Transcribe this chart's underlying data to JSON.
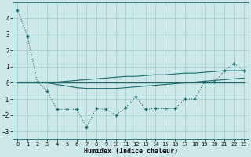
{
  "x": [
    0,
    1,
    2,
    3,
    4,
    5,
    6,
    7,
    8,
    9,
    10,
    11,
    12,
    13,
    14,
    15,
    16,
    17,
    18,
    19,
    20,
    21,
    22,
    23
  ],
  "line_main": [
    4.5,
    2.9,
    0.05,
    -0.5,
    -1.65,
    -1.65,
    -1.65,
    -2.75,
    -1.6,
    -1.65,
    -2.0,
    -1.55,
    -0.85,
    -1.65,
    -1.6,
    -1.6,
    -1.6,
    -1.0,
    -1.0,
    0.05,
    0.05,
    0.75,
    1.2,
    0.75
  ],
  "line_upper": [
    0.05,
    0.05,
    0.05,
    0.05,
    0.05,
    0.1,
    0.15,
    0.2,
    0.25,
    0.3,
    0.35,
    0.4,
    0.4,
    0.45,
    0.5,
    0.5,
    0.55,
    0.6,
    0.6,
    0.65,
    0.7,
    0.75,
    0.75,
    0.75
  ],
  "line_lower": [
    0.0,
    0.0,
    0.0,
    0.0,
    -0.1,
    -0.2,
    -0.3,
    -0.35,
    -0.35,
    -0.35,
    -0.35,
    -0.3,
    -0.25,
    -0.2,
    -0.15,
    -0.1,
    -0.05,
    0.0,
    0.05,
    0.1,
    0.15,
    0.2,
    0.25,
    0.3
  ],
  "line_flat": [
    0.0,
    0.0,
    0.0,
    0.0,
    0.0,
    0.0,
    0.0,
    0.0,
    0.0,
    0.0,
    0.0,
    0.0,
    0.0,
    0.0,
    0.0,
    0.0,
    0.0,
    0.0,
    0.0,
    0.0,
    0.0,
    0.0,
    0.0,
    0.0
  ],
  "color_main": "#1a6b6b",
  "color_band": "#1a6b6b",
  "color_flat": "#1a6b6b",
  "background_color": "#cce8e8",
  "grid_color": "#aad0d0",
  "xlabel": "Humidex (Indice chaleur)",
  "ylim": [
    -3.5,
    5.0
  ],
  "xlim": [
    -0.5,
    23.5
  ],
  "yticks": [
    -3,
    -2,
    -1,
    0,
    1,
    2,
    3,
    4
  ],
  "xticks": [
    0,
    1,
    2,
    3,
    4,
    5,
    6,
    7,
    8,
    9,
    10,
    11,
    12,
    13,
    14,
    15,
    16,
    17,
    18,
    19,
    20,
    21,
    22,
    23
  ],
  "tick_fontsize": 5.0,
  "xlabel_fontsize": 6.0
}
